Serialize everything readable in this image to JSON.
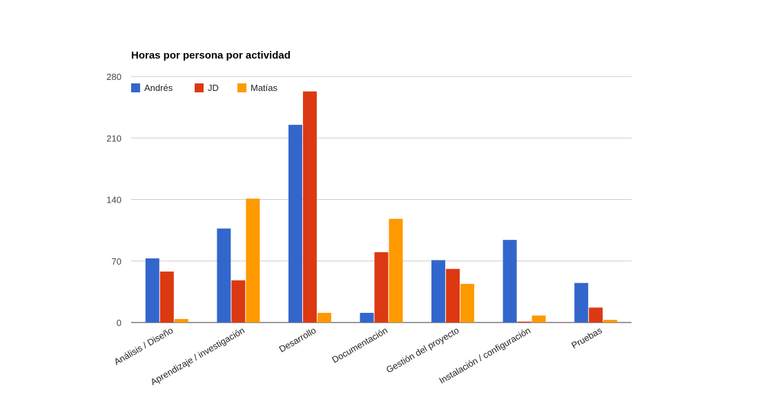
{
  "chart_data": {
    "type": "bar",
    "title": "Horas por persona por actividad",
    "xlabel": "",
    "ylabel": "",
    "ylim": [
      0,
      280
    ],
    "yticks": [
      "0",
      "70",
      "140",
      "210",
      "280"
    ],
    "grid": true,
    "legend_position": "top-left",
    "categories": [
      "Análisis / Diseño",
      "Aprendizaje / investigación",
      "Desarrollo",
      "Documentación",
      "Gestión del proyecto",
      "Instalación / configuración",
      "Pruebas"
    ],
    "series": [
      {
        "name": "Andrés",
        "color": "#3366cc",
        "values": [
          73,
          107,
          225,
          11,
          71,
          94,
          45
        ]
      },
      {
        "name": "JD",
        "color": "#dc3912",
        "values": [
          58,
          48,
          263,
          80,
          61,
          1,
          17
        ]
      },
      {
        "name": "Matías",
        "color": "#ff9900",
        "values": [
          4,
          141,
          11,
          118,
          44,
          8,
          3
        ]
      }
    ]
  }
}
